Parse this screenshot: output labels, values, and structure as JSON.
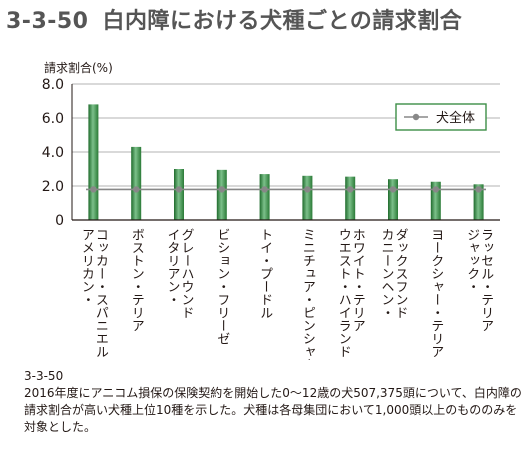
{
  "header": {
    "figure_number": "3-3-50",
    "title": "白内障における犬種ごとの請求割合"
  },
  "caption": {
    "id": "3-3-50",
    "text": "2016年度にアニコム損保の保険契約を開始した0～12歳の犬507,375頭について、白内障の請求割合が高い犬種上位10種を示した。犬種は各母集団において1,000頭以上のもののみを対象とした。"
  },
  "chart_data": {
    "type": "bar",
    "ylabel": "請求割合(%)",
    "ylim": [
      0,
      8
    ],
    "yticks": [
      "0",
      "2.0",
      "4.0",
      "6.0",
      "8.0"
    ],
    "grid": true,
    "legend_position": "top-right",
    "categories": [
      [
        "アメリカン・",
        "コッカー・スパニエル"
      ],
      [
        "ボストン・テリア"
      ],
      [
        "イタリアン・",
        "グレーハウンド"
      ],
      [
        "ビション・フリーゼ"
      ],
      [
        "トイ・プードル"
      ],
      [
        "ミニチュア・ピンシャー"
      ],
      [
        "ウエスト・ハイランド・",
        "ホワイト・テリア"
      ],
      [
        "カニーンヘン・",
        "ダックスフンド"
      ],
      [
        "ヨークシャー・テリア"
      ],
      [
        "ジャック・",
        "ラッセル・テリア"
      ]
    ],
    "series": [
      {
        "type": "bar",
        "values": [
          6.8,
          4.3,
          3.0,
          2.95,
          2.7,
          2.6,
          2.55,
          2.4,
          2.25,
          2.1
        ],
        "color": "#3d8f48"
      },
      {
        "type": "line",
        "name": "犬全体",
        "values": [
          1.8,
          1.8,
          1.8,
          1.8,
          1.8,
          1.8,
          1.8,
          1.8,
          1.8,
          1.8
        ],
        "color": "#888888"
      }
    ]
  }
}
